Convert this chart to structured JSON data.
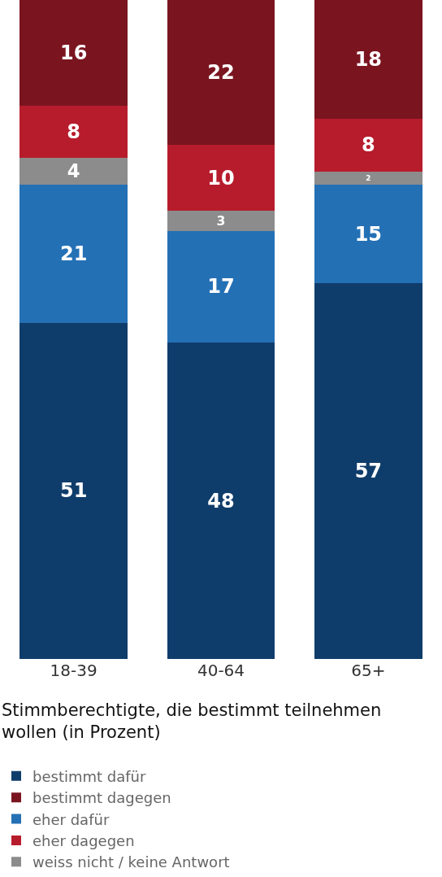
{
  "chart_data": {
    "type": "bar",
    "stacked": true,
    "legend_title": "Stimmberechtigte, die bestimmt teilnehmen wollen (in Prozent)",
    "categories": [
      "18-39",
      "40-64",
      "65+"
    ],
    "ylim": [
      0,
      100
    ],
    "tick_labels": "x",
    "data_labels": true,
    "legend": "bottom",
    "series": [
      {
        "name": "bestimmt dafür",
        "color": "#0f3d6b",
        "values": [
          51,
          48,
          57
        ]
      },
      {
        "name": "eher dafür",
        "color": "#2470b5",
        "values": [
          21,
          17,
          15
        ]
      },
      {
        "name": "weiss nicht / keine Antwort",
        "color": "#8c8c8c",
        "values": [
          4,
          3,
          2
        ]
      },
      {
        "name": "eher dagegen",
        "color": "#b71c2d",
        "values": [
          8,
          10,
          8
        ]
      },
      {
        "name": "bestimmt dagegen",
        "color": "#7a1520",
        "values": [
          16,
          22,
          18
        ]
      }
    ]
  }
}
